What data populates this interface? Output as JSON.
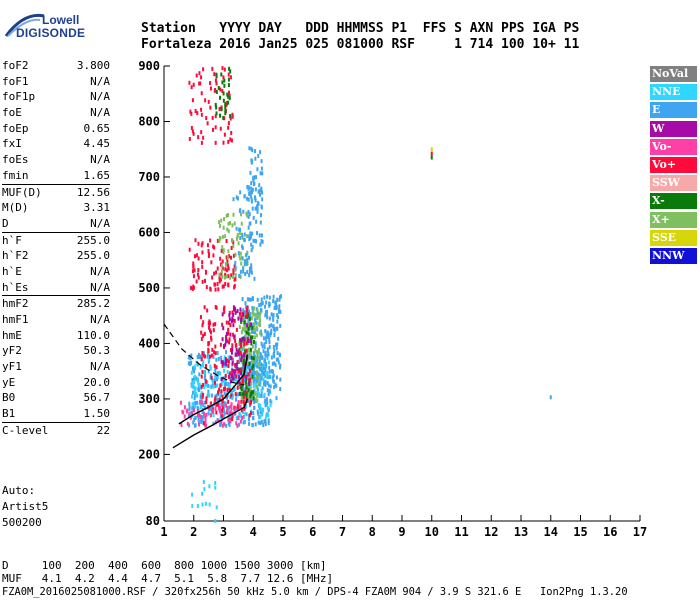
{
  "logo": {
    "line1": "Lowell",
    "line2": "DIGISONDE"
  },
  "header": {
    "labels": "Station   YYYY DAY   DDD HHMMSS P1  FFS S AXN PPS IGA PS",
    "values": "Fortaleza 2016 Jan25 025 081000 RSF     1 714 100 10+ 11"
  },
  "params": [
    {
      "label": "foF2",
      "value": "3.800"
    },
    {
      "label": "foF1",
      "value": "N/A"
    },
    {
      "label": "foF1p",
      "value": "N/A"
    },
    {
      "label": "foE",
      "value": "N/A"
    },
    {
      "label": "foEp",
      "value": "0.65"
    },
    {
      "label": "fxI",
      "value": "4.45"
    },
    {
      "label": "foEs",
      "value": "N/A"
    },
    {
      "label": "fmin",
      "value": "1.65"
    },
    {
      "label": "MUF(D)",
      "value": "12.56",
      "sep": true
    },
    {
      "label": "M(D)",
      "value": "3.31"
    },
    {
      "label": "D",
      "value": "N/A"
    },
    {
      "label": "h`F",
      "value": "255.0",
      "sep": true
    },
    {
      "label": "h`F2",
      "value": "255.0"
    },
    {
      "label": "h`E",
      "value": "N/A"
    },
    {
      "label": "h`Es",
      "value": "N/A"
    },
    {
      "label": "hmF2",
      "value": "285.2",
      "sep": true
    },
    {
      "label": "hmF1",
      "value": "N/A"
    },
    {
      "label": "hmE",
      "value": "110.0"
    },
    {
      "label": "yF2",
      "value": "50.3"
    },
    {
      "label": "yF1",
      "value": "N/A"
    },
    {
      "label": "yE",
      "value": "20.0"
    },
    {
      "label": "B0",
      "value": "56.7"
    },
    {
      "label": "B1",
      "value": "1.50"
    },
    {
      "label": "C-level",
      "value": "22",
      "sep": true
    }
  ],
  "autoscaling": {
    "line1": "Auto:",
    "line2": "Artist5",
    "line3": "500200"
  },
  "legend": [
    {
      "label": "NoVal",
      "color": "#808080"
    },
    {
      "label": "NNE",
      "color": "#2fd6ff"
    },
    {
      "label": "E",
      "color": "#3fa5f0"
    },
    {
      "label": "W",
      "color": "#a80aa8"
    },
    {
      "label": "Vo-",
      "color": "#ff3fa8"
    },
    {
      "label": "Vo+",
      "color": "#ff0a3a"
    },
    {
      "label": "SSW",
      "color": "#f7a8a8"
    },
    {
      "label": "X-",
      "color": "#0a7a0a"
    },
    {
      "label": "X+",
      "color": "#7fbf5f"
    },
    {
      "label": "SSE",
      "color": "#d6d60a"
    },
    {
      "label": "NNW",
      "color": "#1010d6"
    }
  ],
  "footer": {
    "row1": "D     100  200  400  600  800 1000 1500 3000 [km]",
    "row2": "MUF   4.1  4.2  4.4  4.7  5.1  5.8  7.7 12.6 [MHz]",
    "row3": "FZA0M_2016025081000.RSF / 320fx256h 50 kHz 5.0 km / DPS-4 FZA0M 904 / 3.9 S 321.6 E   Ion2Png 1.3.20"
  },
  "chart_data": {
    "type": "scatter",
    "xlim": [
      1,
      17
    ],
    "ylim": [
      80,
      900
    ],
    "x_ticks": [
      1,
      2,
      3,
      4,
      5,
      6,
      7,
      8,
      9,
      10,
      11,
      12,
      13,
      14,
      15,
      16,
      17
    ],
    "y_ticks": [
      80,
      200,
      300,
      400,
      500,
      600,
      700,
      800,
      900
    ],
    "clusters": [
      {
        "name": "E",
        "x": [
          1.8,
          4.5
        ],
        "y": [
          255,
          390
        ],
        "n": 420
      },
      {
        "name": "NNE",
        "x": [
          1.9,
          4.6
        ],
        "y": [
          270,
          380
        ],
        "n": 160
      },
      {
        "name": "E",
        "x": [
          3.6,
          4.9
        ],
        "y": [
          300,
          490
        ],
        "n": 260
      },
      {
        "name": "X+",
        "x": [
          3.5,
          4.2
        ],
        "y": [
          300,
          470
        ],
        "n": 120
      },
      {
        "name": "X-",
        "x": [
          3.5,
          4.0
        ],
        "y": [
          300,
          460
        ],
        "n": 60
      },
      {
        "name": "Vo+",
        "x": [
          2.2,
          3.9
        ],
        "y": [
          255,
          470
        ],
        "n": 180
      },
      {
        "name": "W",
        "x": [
          2.9,
          3.9
        ],
        "y": [
          330,
          470
        ],
        "n": 70
      },
      {
        "name": "Vo-",
        "x": [
          1.5,
          3.6
        ],
        "y": [
          255,
          300
        ],
        "n": 60
      },
      {
        "name": "Vo+",
        "x": [
          1.8,
          3.4
        ],
        "y": [
          500,
          590
        ],
        "n": 90
      },
      {
        "name": "X+",
        "x": [
          2.8,
          3.8
        ],
        "y": [
          520,
          640
        ],
        "n": 60
      },
      {
        "name": "E",
        "x": [
          3.3,
          4.1
        ],
        "y": [
          520,
          690
        ],
        "n": 60
      },
      {
        "name": "E",
        "x": [
          3.8,
          4.3
        ],
        "y": [
          580,
          760
        ],
        "n": 70
      },
      {
        "name": "Vo+",
        "x": [
          1.8,
          3.3
        ],
        "y": [
          765,
          900
        ],
        "n": 70
      },
      {
        "name": "X-",
        "x": [
          2.7,
          3.2
        ],
        "y": [
          800,
          900
        ],
        "n": 30
      },
      {
        "name": "NNE",
        "x": [
          1.9,
          2.8
        ],
        "y": [
          80,
          155
        ],
        "n": 14
      }
    ],
    "isolated_points": [
      {
        "x": 10.0,
        "y": 735,
        "color": "#0a7a0a"
      },
      {
        "x": 10.0,
        "y": 742,
        "color": "#ff0a3a"
      },
      {
        "x": 10.0,
        "y": 750,
        "color": "#d6d60a"
      },
      {
        "x": 14.0,
        "y": 303,
        "color": "#3fa5f0"
      }
    ],
    "trace_solid": {
      "x": [
        1.5,
        2.0,
        2.5,
        3.0,
        3.4,
        3.7,
        3.8
      ],
      "y": [
        255,
        272,
        285,
        300,
        325,
        345,
        380
      ]
    },
    "profile_solid": {
      "x": [
        1.3,
        2.0,
        2.6,
        3.2,
        3.7,
        3.8
      ],
      "y": [
        212,
        235,
        252,
        270,
        285,
        300
      ]
    },
    "profile_dashed": {
      "x": [
        1.0,
        1.6,
        2.2,
        2.8,
        3.3,
        3.7
      ],
      "y": [
        435,
        390,
        362,
        342,
        330,
        325
      ]
    }
  }
}
